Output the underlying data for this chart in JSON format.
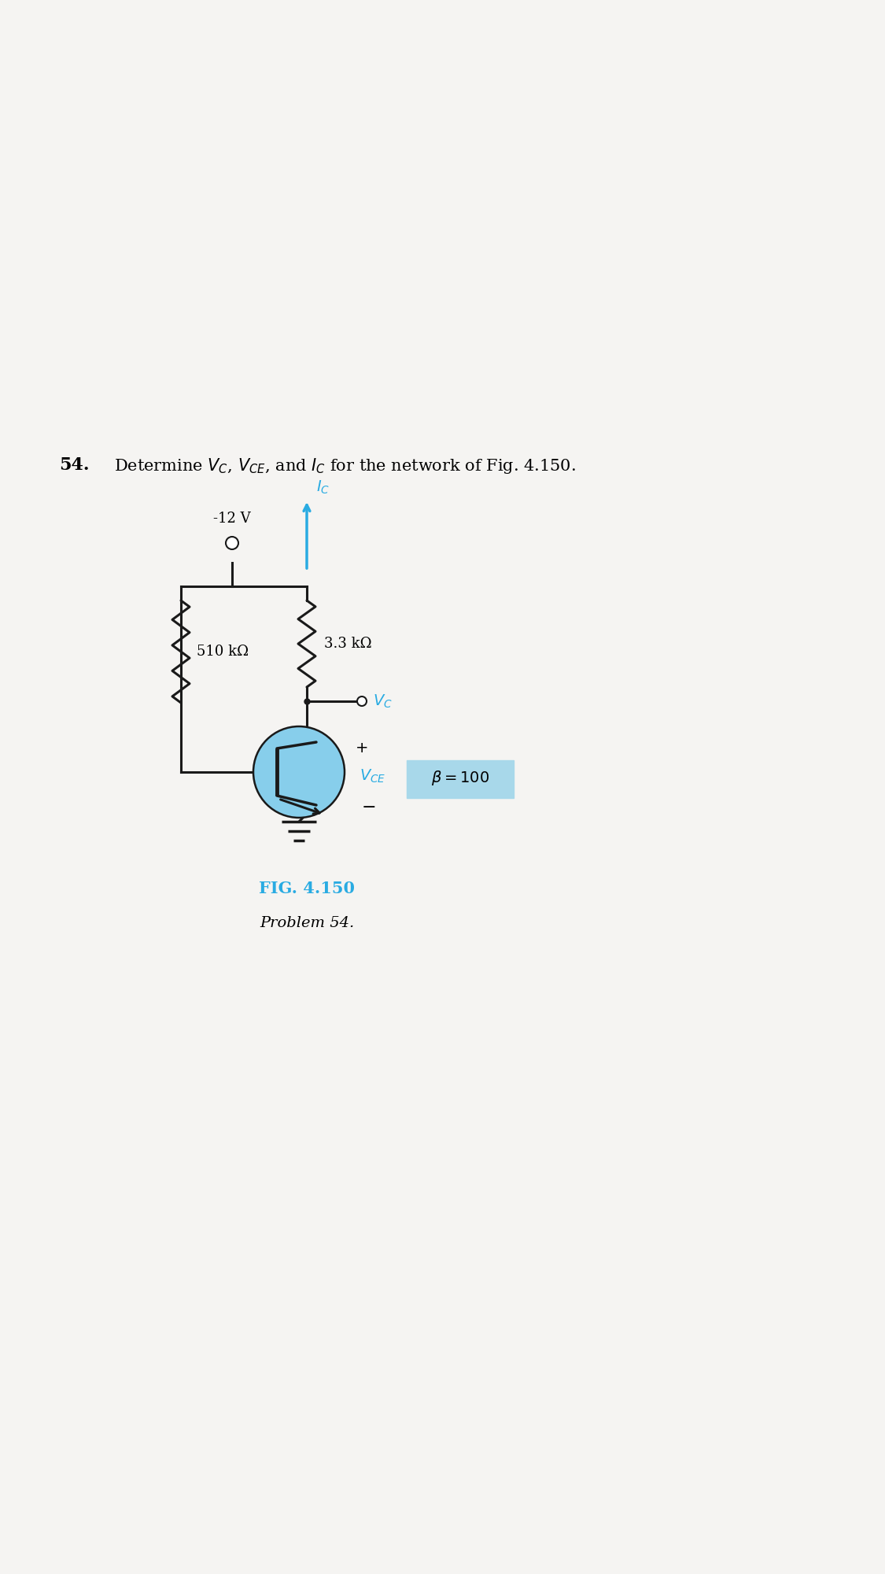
{
  "bg_color": "#f5f4f2",
  "voltage_label": "-12 V",
  "resistor1_label": "3.3 kΩ",
  "resistor2_label": "510 kΩ",
  "cyan_color": "#29ABE2",
  "line_color": "#1a1a1a",
  "transistor_fill": "#87CEEB",
  "beta_box_fill": "#a8d8ea",
  "fig_label": "FIG. 4.150",
  "prob_label": "Problem 54."
}
